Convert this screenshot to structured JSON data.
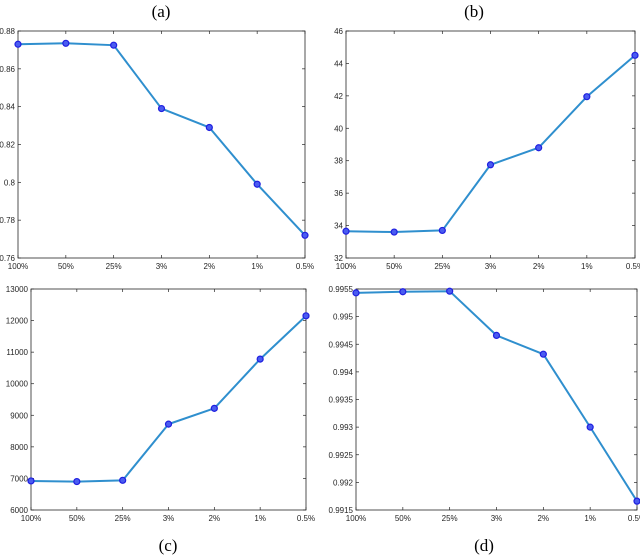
{
  "chart_data": [
    {
      "type": "line",
      "panel_label": "(a)",
      "categories": [
        "100%",
        "50%",
        "25%",
        "3%",
        "2%",
        "1%",
        "0.5%"
      ],
      "values": [
        0.873,
        0.8735,
        0.8725,
        0.839,
        0.829,
        0.799,
        0.772
      ],
      "ylim": [
        0.76,
        0.88
      ],
      "yticks": [
        0.76,
        0.78,
        0.8,
        0.82,
        0.84,
        0.86,
        0.88
      ],
      "ytick_labels": [
        "0.76",
        "0.78",
        "0.8",
        "0.82",
        "0.84",
        "0.86",
        "0.88"
      ],
      "grid": false,
      "line_color": "#2f8fce",
      "marker_color": "#1f1fe0"
    },
    {
      "type": "line",
      "panel_label": "(b)",
      "categories": [
        "100%",
        "50%",
        "25%",
        "3%",
        "2%",
        "1%",
        "0.5%"
      ],
      "values": [
        33.65,
        33.6,
        33.7,
        37.75,
        38.8,
        41.95,
        44.5
      ],
      "ylim": [
        32,
        46
      ],
      "yticks": [
        32,
        34,
        36,
        38,
        40,
        42,
        44,
        46
      ],
      "ytick_labels": [
        "32",
        "34",
        "36",
        "38",
        "40",
        "42",
        "44",
        "46"
      ],
      "grid": false,
      "line_color": "#2f8fce",
      "marker_color": "#1f1fe0"
    },
    {
      "type": "line",
      "panel_label": "(c)",
      "categories": [
        "100%",
        "50%",
        "25%",
        "3%",
        "2%",
        "1%",
        "0.5%"
      ],
      "values": [
        6920,
        6900,
        6940,
        8720,
        9220,
        10780,
        12150
      ],
      "ylim": [
        6000,
        13000
      ],
      "yticks": [
        6000,
        7000,
        8000,
        9000,
        10000,
        11000,
        12000,
        13000
      ],
      "ytick_labels": [
        "6000",
        "7000",
        "8000",
        "9000",
        "10000",
        "11000",
        "12000",
        "13000"
      ],
      "grid": false,
      "line_color": "#2f8fce",
      "marker_color": "#1f1fe0"
    },
    {
      "type": "line",
      "panel_label": "(d)",
      "categories": [
        "100%",
        "50%",
        "25%",
        "3%",
        "2%",
        "1%",
        "0.5%"
      ],
      "values": [
        0.99543,
        0.99545,
        0.99546,
        0.99466,
        0.99432,
        0.993,
        0.99166
      ],
      "ylim": [
        0.9915,
        0.9955
      ],
      "yticks": [
        0.9915,
        0.992,
        0.9925,
        0.993,
        0.9935,
        0.994,
        0.9945,
        0.995,
        0.9955
      ],
      "ytick_labels": [
        "0.9915",
        "0.992",
        "0.9925",
        "0.993",
        "0.9935",
        "0.994",
        "0.9945",
        "0.995",
        "0.9955"
      ],
      "grid": false,
      "line_color": "#2f8fce",
      "marker_color": "#1f1fe0"
    }
  ]
}
